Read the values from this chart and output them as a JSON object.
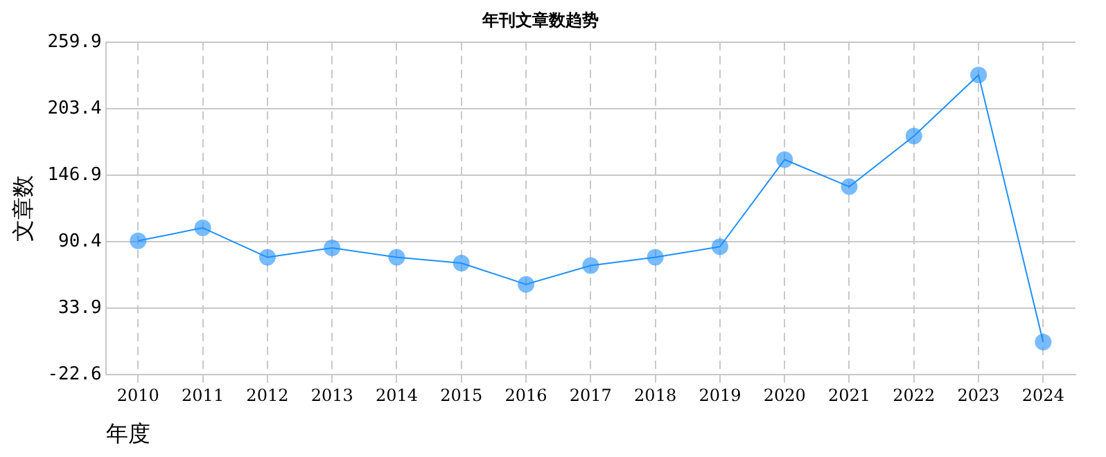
{
  "chart_data": {
    "type": "line",
    "title": "年刊文章数趋势",
    "xlabel": "年度",
    "ylabel": "文章数",
    "categories": [
      "2010",
      "2011",
      "2012",
      "2013",
      "2014",
      "2015",
      "2016",
      "2017",
      "2018",
      "2019",
      "2020",
      "2021",
      "2022",
      "2023",
      "2024"
    ],
    "series": [
      {
        "color": "#1e90ff",
        "values": [
          91,
          102,
          77,
          85,
          77,
          72,
          54,
          70,
          77,
          86,
          160,
          137,
          180,
          232,
          5
        ]
      }
    ],
    "ylim": [
      -22.6,
      259.9
    ],
    "yticks": [
      -22.6,
      33.9,
      90.4,
      146.9,
      203.4,
      259.9
    ],
    "grid": true,
    "marker": "circle",
    "line_style": "solid"
  }
}
